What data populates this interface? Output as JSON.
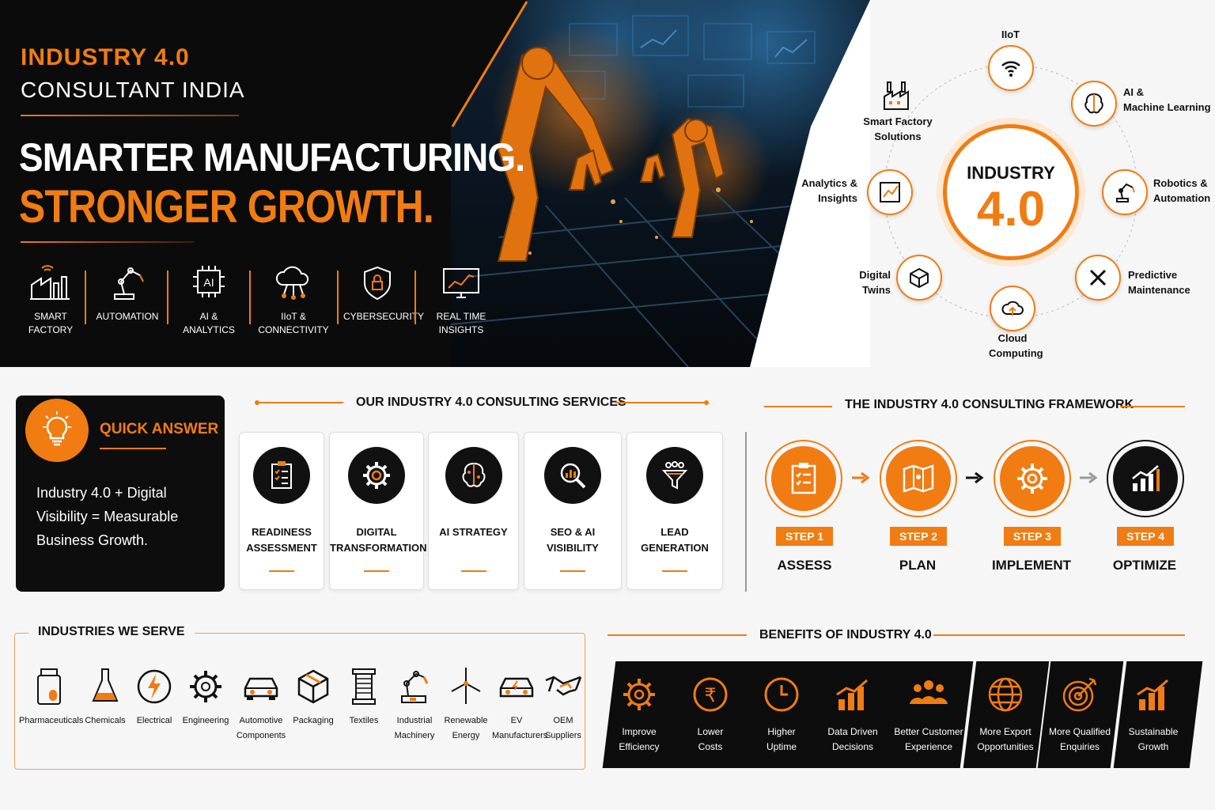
{
  "hero": {
    "title_line1": "INDUSTRY 4.0",
    "title_line2": "CONSULTANT INDIA",
    "headline1": "SMARTER MANUFACTURING.",
    "headline2": "STRONGER GROWTH.",
    "features": [
      {
        "icon": "smart-factory-icon",
        "label": "SMART FACTORY"
      },
      {
        "icon": "robot-arm-icon",
        "label": "AUTOMATION"
      },
      {
        "icon": "ai-chip-icon",
        "label": "AI & ANALYTICS"
      },
      {
        "icon": "cloud-network-icon",
        "label_l1": "IIoT &",
        "label_l2": "CONNECTIVITY"
      },
      {
        "icon": "shield-lock-icon",
        "label": "CYBERSECURITY"
      },
      {
        "icon": "monitor-chart-icon",
        "label": "REAL TIME INSIGHTS"
      }
    ]
  },
  "diagram": {
    "center_top": "INDUSTRY",
    "center_big": "4.0",
    "nodes": [
      {
        "icon": "wifi-icon",
        "l1": "IIoT",
        "l2": ""
      },
      {
        "icon": "brain-icon",
        "l1": "AI &",
        "l2": "Machine Learning"
      },
      {
        "icon": "robot-arm-icon",
        "l1": "Robotics &",
        "l2": "Automation"
      },
      {
        "icon": "wrench-icon",
        "l1": "Predictive",
        "l2": "Maintenance"
      },
      {
        "icon": "cloud-icon",
        "l1": "Cloud",
        "l2": "Computing"
      },
      {
        "icon": "cube-icon",
        "l1": "Digital",
        "l2": "Twins"
      },
      {
        "icon": "analytics-icon",
        "l1": "Analytics &",
        "l2": "Insights"
      },
      {
        "icon": "factory-icon",
        "l1": "Smart Factory",
        "l2": "Solutions"
      }
    ]
  },
  "quick_answer": {
    "title": "QUICK ANSWER",
    "l1": "Industry 4.0 + Digital",
    "l2": "Visibility = Measurable",
    "l3": "Business Growth."
  },
  "services": {
    "title": "OUR INDUSTRY 4.0 CONSULTING SERVICES",
    "items": [
      {
        "icon": "checklist-icon",
        "l1": "READINESS",
        "l2": "ASSESSMENT"
      },
      {
        "icon": "gear-icon",
        "l1": "DIGITAL",
        "l2": "TRANSFORMATION"
      },
      {
        "icon": "brain-icon",
        "l1": "AI STRATEGY",
        "l2": ""
      },
      {
        "icon": "magnifier-chart-icon",
        "l1": "SEO & AI",
        "l2": "VISIBILITY"
      },
      {
        "icon": "funnel-icon",
        "l1": "LEAD",
        "l2": "GENERATION"
      }
    ]
  },
  "framework": {
    "title": "THE INDUSTRY 4.0 CONSULTING FRAMEWORK",
    "steps": [
      {
        "badge": "STEP 1",
        "name": "ASSESS",
        "icon": "checklist-icon"
      },
      {
        "badge": "STEP 2",
        "name": "PLAN",
        "icon": "map-icon"
      },
      {
        "badge": "STEP 3",
        "name": "IMPLEMENT",
        "icon": "gear-icon"
      },
      {
        "badge": "STEP 4",
        "name": "OPTIMIZE",
        "icon": "growth-chart-icon"
      }
    ]
  },
  "industries": {
    "title": "INDUSTRIES WE SERVE",
    "items": [
      {
        "icon": "pill-bottle-icon",
        "l1": "Pharmaceuticals",
        "l2": ""
      },
      {
        "icon": "flask-icon",
        "l1": "Chemicals",
        "l2": ""
      },
      {
        "icon": "lightning-icon",
        "l1": "Electrical",
        "l2": ""
      },
      {
        "icon": "gear-icon",
        "l1": "Engineering",
        "l2": ""
      },
      {
        "icon": "car-icon",
        "l1": "Automotive",
        "l2": "Components"
      },
      {
        "icon": "box-icon",
        "l1": "Packaging",
        "l2": ""
      },
      {
        "icon": "spool-icon",
        "l1": "Textiles",
        "l2": ""
      },
      {
        "icon": "machine-icon",
        "l1": "Industrial",
        "l2": "Machinery"
      },
      {
        "icon": "wind-turbine-icon",
        "l1": "Renewable",
        "l2": "Energy"
      },
      {
        "icon": "ev-car-icon",
        "l1": "EV",
        "l2": "Manufacturers"
      },
      {
        "icon": "handshake-icon",
        "l1": "OEM",
        "l2": "Suppliers"
      }
    ]
  },
  "benefits": {
    "title": "BENEFITS OF INDUSTRY 4.0",
    "items": [
      {
        "icon": "gear-icon",
        "l1": "Improve",
        "l2": "Efficiency"
      },
      {
        "icon": "rupee-icon",
        "l1": "Lower",
        "l2": "Costs"
      },
      {
        "icon": "clock-icon",
        "l1": "Higher",
        "l2": "Uptime"
      },
      {
        "icon": "bar-chart-icon",
        "l1": "Data Driven",
        "l2": "Decisions"
      },
      {
        "icon": "people-icon",
        "l1": "Better Customer",
        "l2": "Experience"
      },
      {
        "icon": "globe-icon",
        "l1": "More Export",
        "l2": "Opportunities"
      },
      {
        "icon": "target-icon",
        "l1": "More Qualified",
        "l2": "Enquiries"
      },
      {
        "icon": "growth-chart-icon",
        "l1": "Sustainable",
        "l2": "Growth"
      }
    ]
  },
  "colors": {
    "accent": "#f07c12",
    "dark": "#0d0d0d"
  }
}
